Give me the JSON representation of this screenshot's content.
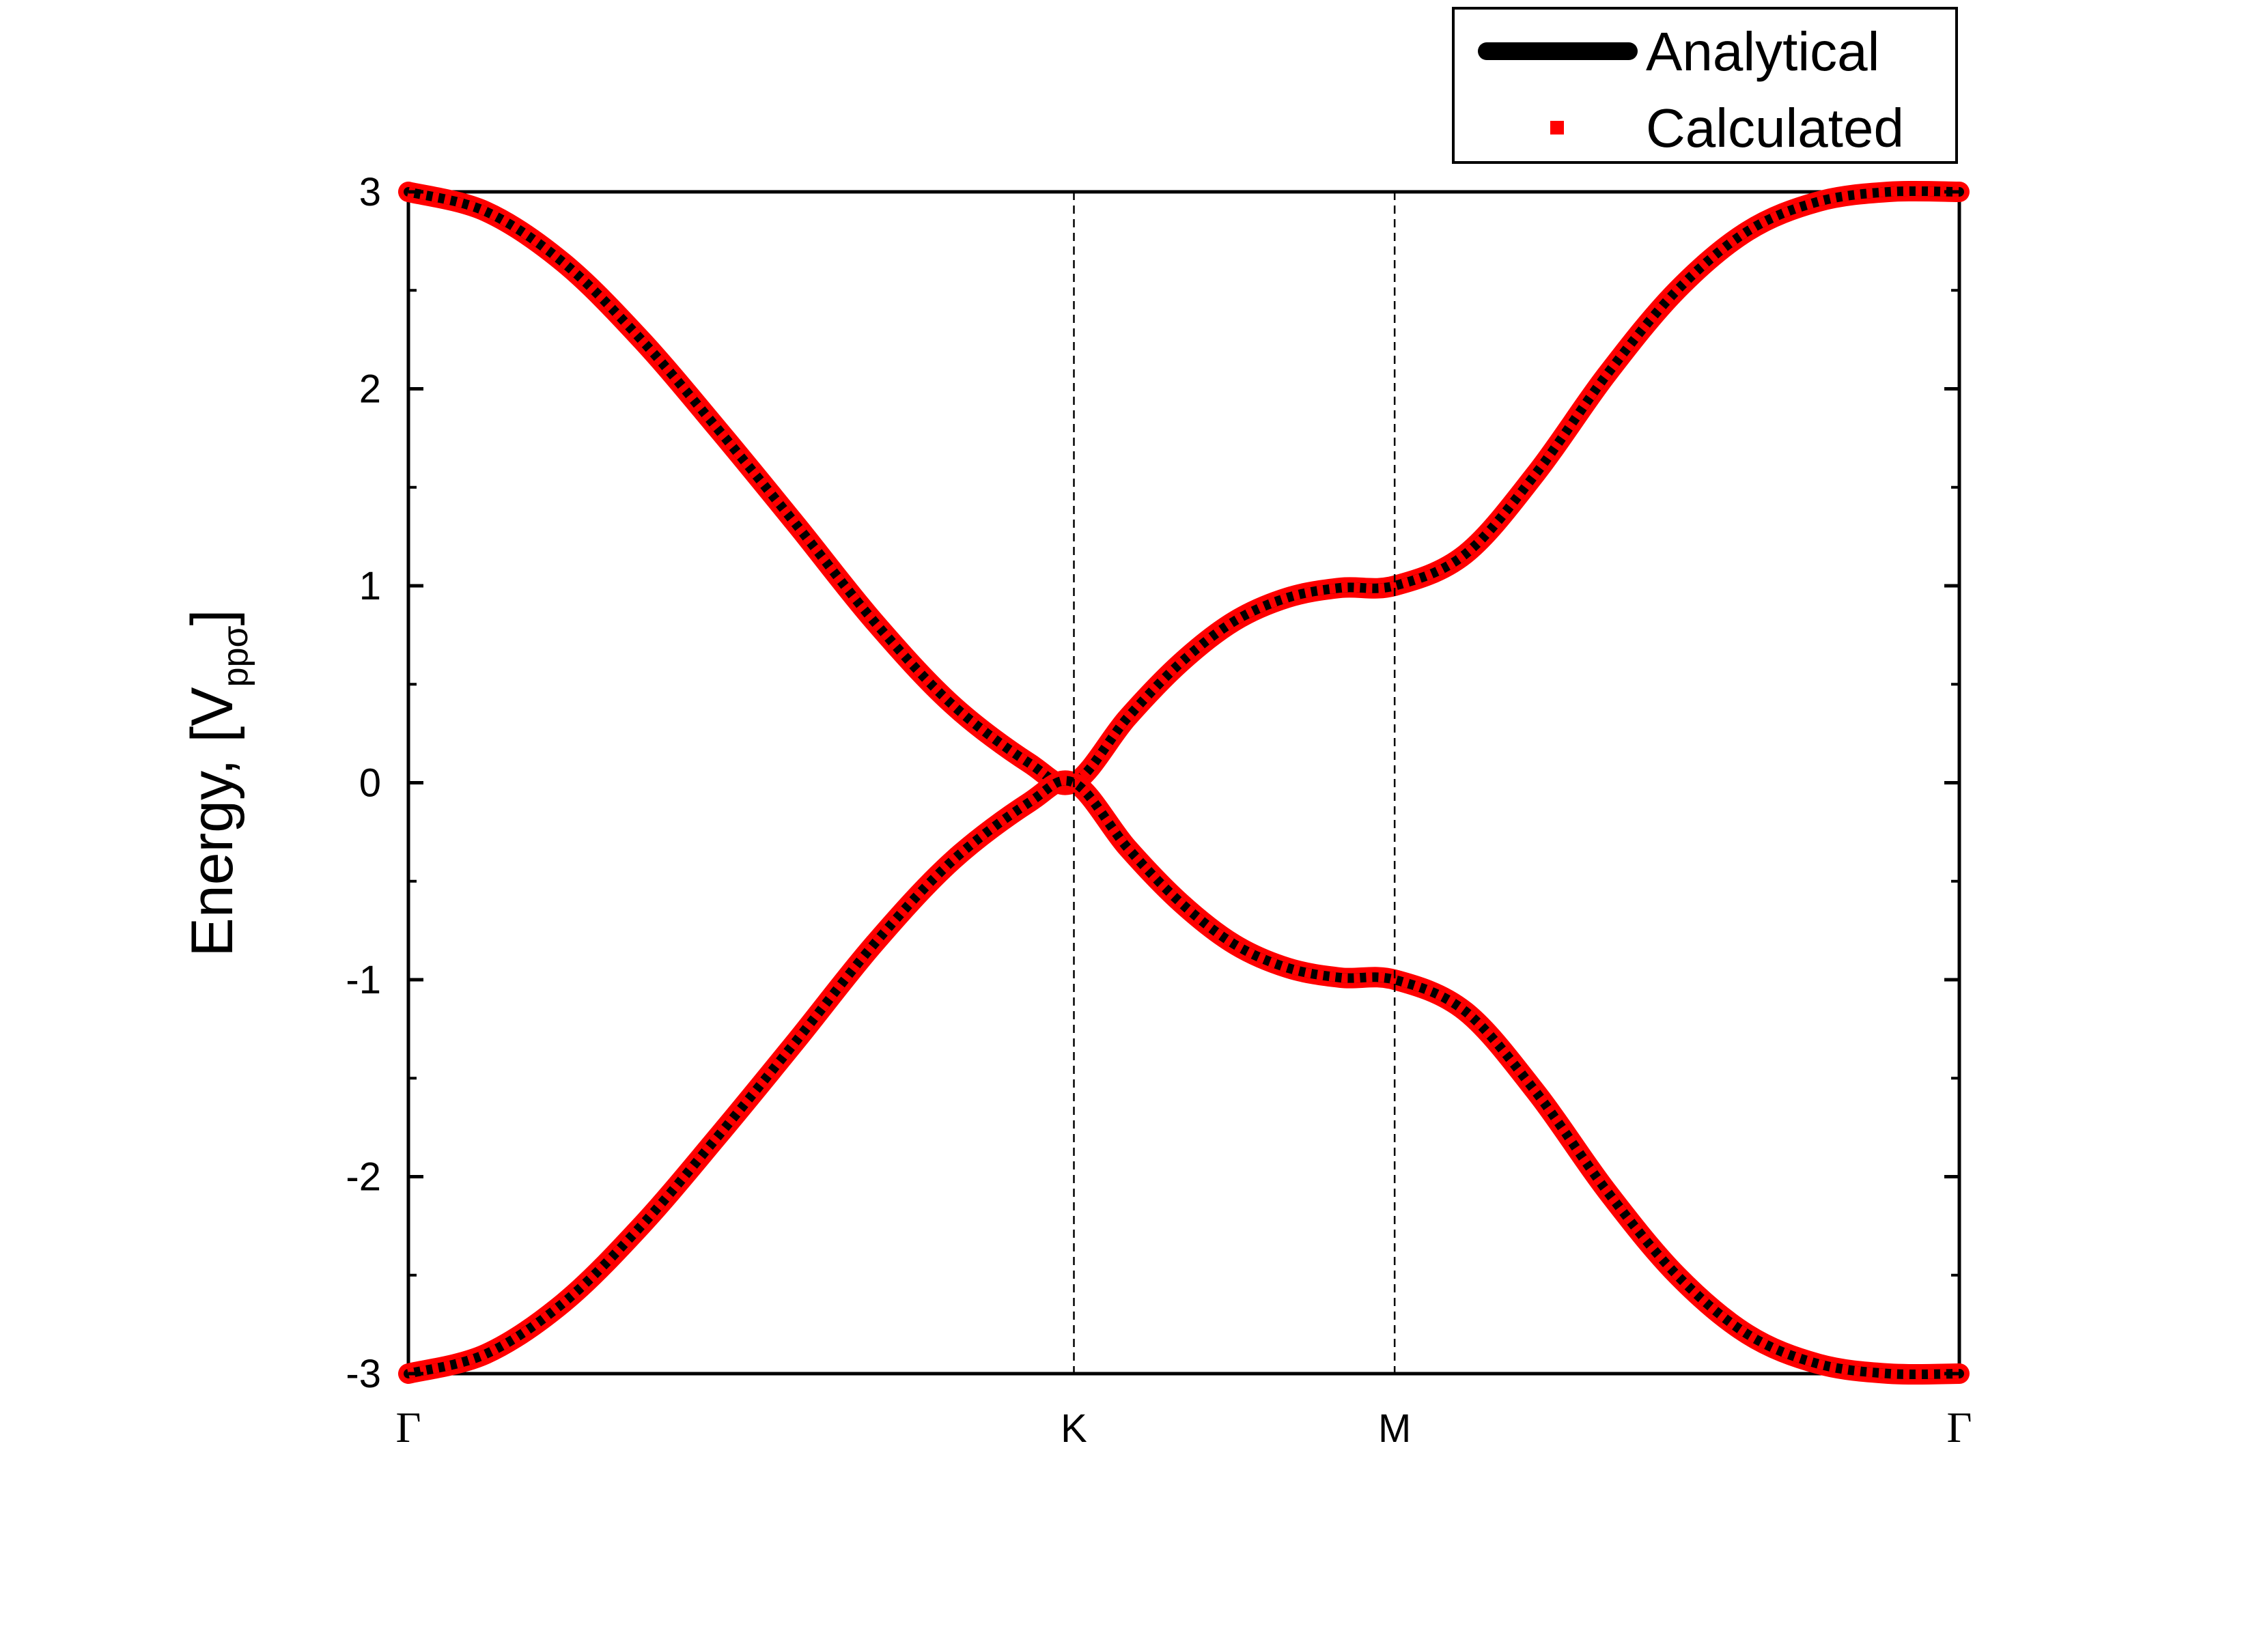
{
  "chart_data": {
    "type": "line",
    "title": "",
    "xlabel": "",
    "ylabel": {
      "prefix": "Energy, [V",
      "subscript": "ppσ",
      "suffix": "]"
    },
    "ylim": [
      -3,
      3
    ],
    "xlim": [
      0,
      7.256
    ],
    "y_ticks": [
      -3,
      -2,
      -1,
      0,
      1,
      2,
      3
    ],
    "y_tick_labels": [
      "-3",
      "-2",
      "-1",
      "0",
      "1",
      "2",
      "3"
    ],
    "x_ticks": [
      {
        "label": "Γ",
        "x": 0
      },
      {
        "label": "K",
        "x": 3.1136
      },
      {
        "label": "M",
        "x": 4.6142
      },
      {
        "label": "Γ",
        "x": 7.256
      }
    ],
    "vertical_lines_at": [
      3.1136,
      4.6142
    ],
    "grid": false,
    "legend_position": "top-right",
    "series": [
      {
        "name": "Analytical",
        "style": "line",
        "color": "#000000"
      },
      {
        "name": "Calculated",
        "style": "markers",
        "color": "#ff0000"
      }
    ],
    "band_points": {
      "x": [
        0,
        0.363,
        0.726,
        1.089,
        1.452,
        1.815,
        2.178,
        2.541,
        2.904,
        3.1136,
        3.364,
        3.614,
        3.864,
        4.114,
        4.364,
        4.6142,
        4.944,
        5.275,
        5.605,
        5.935,
        6.265,
        6.595,
        6.926,
        7.256
      ],
      "upper": [
        3.0,
        2.9,
        2.64,
        2.25,
        1.79,
        1.31,
        0.82,
        0.4,
        0.1,
        0.0,
        0.33,
        0.61,
        0.82,
        0.94,
        0.99,
        1.0,
        1.16,
        1.57,
        2.07,
        2.5,
        2.8,
        2.95,
        3.0,
        3.0
      ],
      "lower": [
        -3.0,
        -2.9,
        -2.64,
        -2.25,
        -1.79,
        -1.31,
        -0.82,
        -0.4,
        -0.1,
        0.0,
        -0.33,
        -0.61,
        -0.82,
        -0.94,
        -0.99,
        -1.0,
        -1.16,
        -1.57,
        -2.07,
        -2.5,
        -2.8,
        -2.95,
        -3.0,
        -3.0
      ]
    }
  },
  "legend": {
    "analytical_label": "Analytical",
    "calculated_label": "Calculated"
  },
  "colors": {
    "analytical": "#000000",
    "calculated": "#ff0000",
    "axis": "#000000"
  }
}
